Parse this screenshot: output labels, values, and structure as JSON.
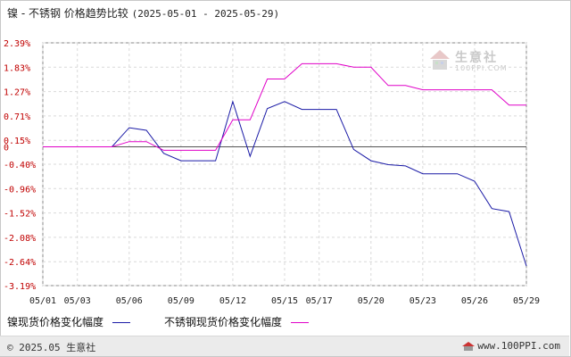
{
  "title": {
    "main": "镍 - 不锈钢 价格趋势比较",
    "range": "(2025-05-01 - 2025-05-29)"
  },
  "watermark": {
    "text": "生意社",
    "sub": "100PPI.COM"
  },
  "footer": {
    "copyright": "© 2025.05 生意社",
    "site": "www.100PPI.com"
  },
  "colors": {
    "nickel": "#1a1aa6",
    "stainless": "#e000c8",
    "grid": "#d9d9d9",
    "axis": "#888888"
  },
  "chart_data": {
    "type": "line",
    "x_ticks": [
      "05/01",
      "05/03",
      "05/06",
      "05/09",
      "05/12",
      "05/15",
      "05/17",
      "05/20",
      "05/23",
      "05/26",
      "05/29"
    ],
    "y_ticks": [
      "2.39%",
      "1.83%",
      "1.27%",
      "0.71%",
      "0.15%",
      "0",
      "-0.40%",
      "-0.96%",
      "-1.52%",
      "-2.08%",
      "-2.64%",
      "-3.19%"
    ],
    "y_tick_values": [
      2.39,
      1.83,
      1.27,
      0.71,
      0.15,
      0,
      -0.4,
      -0.96,
      -1.52,
      -2.08,
      -2.64,
      -3.19
    ],
    "ylim": [
      -3.19,
      2.39
    ],
    "grid": true,
    "legend": "bottom",
    "series": [
      {
        "name": "镍现货价格变化幅度",
        "color_key": "nickel",
        "points": [
          [
            "05/01",
            0
          ],
          [
            "05/05",
            0
          ],
          [
            "05/06",
            0.44
          ],
          [
            "05/07",
            0.38
          ],
          [
            "05/08",
            -0.15
          ],
          [
            "05/09",
            -0.32
          ],
          [
            "05/11",
            -0.32
          ],
          [
            "05/12",
            1.04
          ],
          [
            "05/13",
            -0.22
          ],
          [
            "05/14",
            0.88
          ],
          [
            "05/15",
            1.04
          ],
          [
            "05/16",
            0.86
          ],
          [
            "05/18",
            0.86
          ],
          [
            "05/19",
            -0.06
          ],
          [
            "05/20",
            -0.32
          ],
          [
            "05/21",
            -0.41
          ],
          [
            "05/22",
            -0.44
          ],
          [
            "05/23",
            -0.62
          ],
          [
            "05/25",
            -0.62
          ],
          [
            "05/26",
            -0.79
          ],
          [
            "05/27",
            -1.42
          ],
          [
            "05/28",
            -1.49
          ],
          [
            "05/29",
            -2.74
          ]
        ]
      },
      {
        "name": "不锈钢现货价格变化幅度",
        "color_key": "stainless",
        "points": [
          [
            "05/01",
            0
          ],
          [
            "05/05",
            0
          ],
          [
            "05/06",
            0.12
          ],
          [
            "05/07",
            0.12
          ],
          [
            "05/08",
            -0.08
          ],
          [
            "05/09",
            -0.08
          ],
          [
            "05/11",
            -0.08
          ],
          [
            "05/12",
            0.62
          ],
          [
            "05/13",
            0.62
          ],
          [
            "05/14",
            1.56
          ],
          [
            "05/15",
            1.56
          ],
          [
            "05/16",
            1.91
          ],
          [
            "05/18",
            1.91
          ],
          [
            "05/19",
            1.83
          ],
          [
            "05/20",
            1.83
          ],
          [
            "05/21",
            1.41
          ],
          [
            "05/22",
            1.41
          ],
          [
            "05/23",
            1.31
          ],
          [
            "05/25",
            1.31
          ],
          [
            "05/26",
            1.31
          ],
          [
            "05/27",
            1.31
          ],
          [
            "05/28",
            0.96
          ],
          [
            "05/29",
            0.96
          ]
        ]
      }
    ]
  }
}
